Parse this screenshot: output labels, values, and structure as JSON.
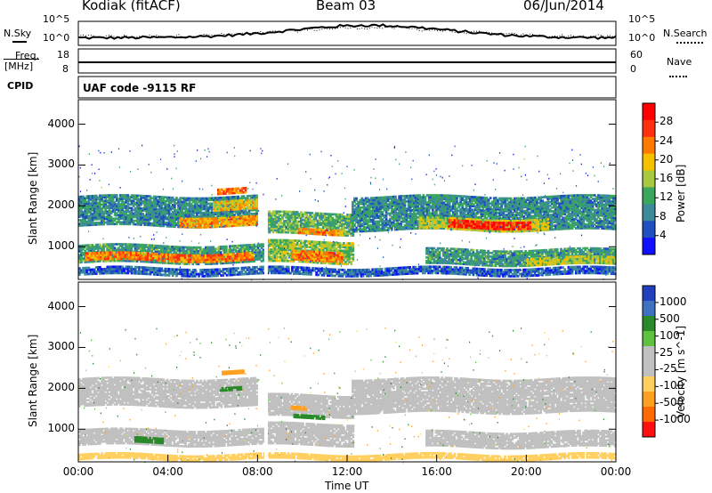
{
  "header": {
    "station": "Kodiak (fitACF)",
    "beam": "Beam 03",
    "date": "06/Jun/2014"
  },
  "top_panels": {
    "nsky_label": "N.Sky",
    "nsky_ticks": [
      "10^5",
      "10^0"
    ],
    "nsearch_label": "N.Search",
    "nsearch_ticks": [
      "10^5",
      "10^0"
    ],
    "freq_label_1": "Freq.",
    "freq_label_2": "[MHz]",
    "freq_ticks": [
      "18",
      "8"
    ],
    "nave_label": "Nave",
    "nave_ticks": [
      "60",
      "0"
    ],
    "cpid_label": "CPID",
    "cpid_text": "UAF code -9115 RF"
  },
  "colors": {
    "power_scale": [
      "#1010ff",
      "#2050c0",
      "#3c8a9a",
      "#3aa85c",
      "#a8c840",
      "#f4c000",
      "#ff7a00",
      "#ff3010",
      "#ff0000"
    ],
    "velocity_scale": [
      "#ff1010",
      "#ff6a00",
      "#ffa020",
      "#ffd060",
      "#c0c0c0",
      "#c0c0c0",
      "#60c040",
      "#2a8a2a",
      "#4070c0",
      "#2040c0"
    ],
    "ground_scatter": "#c0c0c0"
  },
  "chart_data": [
    {
      "type": "heatmap",
      "name": "power",
      "xlabel": "",
      "ylabel": "Slant Range [km]",
      "xlim": [
        "00:00",
        "24:00"
      ],
      "ylim": [
        200,
        4600
      ],
      "yticks": [
        "1000",
        "2000",
        "3000",
        "4000"
      ],
      "colorbar_label": "Power [dB]",
      "colorbar_ticks": [
        "28",
        "24",
        "20",
        "16",
        "12",
        "8",
        "4"
      ],
      "colorbar_range": [
        0,
        30
      ],
      "bands": [
        {
          "t0": 0.0,
          "t1": 24.0,
          "r0": 300,
          "r1": 500,
          "v": 6
        },
        {
          "t0": 0.0,
          "t1": 8.3,
          "r0": 600,
          "r1": 1050,
          "v": 10
        },
        {
          "t0": 0.3,
          "t1": 7.8,
          "r0": 650,
          "r1": 850,
          "v": 22
        },
        {
          "t0": 8.4,
          "t1": 12.3,
          "r0": 600,
          "r1": 1150,
          "v": 14
        },
        {
          "t0": 9.5,
          "t1": 11.8,
          "r0": 650,
          "r1": 900,
          "v": 22
        },
        {
          "t0": 15.5,
          "t1": 24.0,
          "r0": 550,
          "r1": 950,
          "v": 10
        },
        {
          "t0": 20.0,
          "t1": 24.0,
          "r0": 550,
          "r1": 750,
          "v": 16
        },
        {
          "t0": 0.0,
          "t1": 8.0,
          "r0": 1500,
          "r1": 2250,
          "v": 9
        },
        {
          "t0": 4.5,
          "t1": 8.0,
          "r0": 1500,
          "r1": 1750,
          "v": 20
        },
        {
          "t0": 6.0,
          "t1": 8.0,
          "r0": 1900,
          "r1": 2150,
          "v": 18
        },
        {
          "t0": 6.2,
          "t1": 7.5,
          "r0": 2300,
          "r1": 2450,
          "v": 22
        },
        {
          "t0": 8.4,
          "t1": 12.3,
          "r0": 1300,
          "r1": 1850,
          "v": 12
        },
        {
          "t0": 9.8,
          "t1": 11.8,
          "r0": 1300,
          "r1": 1450,
          "v": 20
        },
        {
          "t0": 12.2,
          "t1": 24.0,
          "r0": 1400,
          "r1": 2250,
          "v": 9
        },
        {
          "t0": 15.2,
          "t1": 21.0,
          "r0": 1400,
          "r1": 1700,
          "v": 16
        },
        {
          "t0": 16.5,
          "t1": 20.2,
          "r0": 1450,
          "r1": 1650,
          "v": 26
        }
      ]
    },
    {
      "type": "heatmap",
      "name": "velocity",
      "xlabel": "Time UT",
      "ylabel": "Slant Range [km]",
      "xlim": [
        "00:00",
        "24:00"
      ],
      "ylim": [
        200,
        4600
      ],
      "xticks": [
        "00:00",
        "04:00",
        "08:00",
        "12:00",
        "16:00",
        "20:00",
        "00:00"
      ],
      "yticks": [
        "1000",
        "2000",
        "3000",
        "4000"
      ],
      "colorbar_label": "Velocity [m s^-1]",
      "colorbar_ticks": [
        "1000",
        "500",
        "100",
        "25",
        "-25",
        "-100",
        "-500",
        "-1000"
      ],
      "bands": [
        {
          "t0": 0.0,
          "t1": 8.3,
          "r0": 600,
          "r1": 1000,
          "v": "gs"
        },
        {
          "t0": 8.4,
          "t1": 12.3,
          "r0": 600,
          "r1": 1150,
          "v": "gs"
        },
        {
          "t0": 15.5,
          "t1": 24.0,
          "r0": 550,
          "r1": 950,
          "v": "gs"
        },
        {
          "t0": 0.0,
          "t1": 8.0,
          "r0": 1550,
          "r1": 2250,
          "v": "gs"
        },
        {
          "t0": 8.4,
          "t1": 12.3,
          "r0": 1300,
          "r1": 1850,
          "v": "gs"
        },
        {
          "t0": 12.2,
          "t1": 24.0,
          "r0": 1400,
          "r1": 2250,
          "v": "gs"
        },
        {
          "t0": 2.5,
          "t1": 3.8,
          "r0": 650,
          "r1": 800,
          "v": 300
        },
        {
          "t0": 9.6,
          "t1": 11.0,
          "r0": 1250,
          "r1": 1350,
          "v": 200
        },
        {
          "t0": 9.5,
          "t1": 10.2,
          "r0": 1450,
          "r1": 1550,
          "v": -200
        },
        {
          "t0": 6.3,
          "t1": 7.3,
          "r0": 1950,
          "r1": 2050,
          "v": 200
        },
        {
          "t0": 6.4,
          "t1": 7.4,
          "r0": 2350,
          "r1": 2450,
          "v": -150
        },
        {
          "t0": 0.0,
          "t1": 24.0,
          "r0": 250,
          "r1": 400,
          "v": -80
        }
      ]
    }
  ]
}
